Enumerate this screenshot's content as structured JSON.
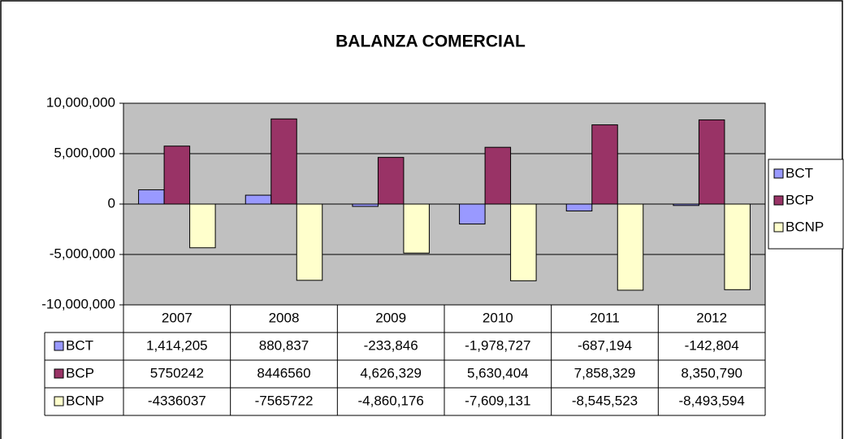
{
  "chart_data": {
    "type": "bar",
    "title": "BALANZA COMERCIAL",
    "categories": [
      "2007",
      "2008",
      "2009",
      "2010",
      "2011",
      "2012"
    ],
    "series": [
      {
        "name": "BCT",
        "color": "#9999ff",
        "values": [
          1414205,
          880837,
          -233846,
          -1978727,
          -687194,
          -142804
        ],
        "value_labels": [
          "1,414,205",
          "880,837",
          "-233,846",
          "-1,978,727",
          "-687,194",
          "-142,804"
        ]
      },
      {
        "name": "BCP",
        "color": "#993366",
        "values": [
          5750242,
          8446560,
          4626329,
          5630404,
          7858329,
          8350790
        ],
        "value_labels": [
          "5750242",
          "8446560",
          "4,626,329",
          "5,630,404",
          "7,858,329",
          "8,350,790"
        ]
      },
      {
        "name": "BCNP",
        "color": "#ffffcc",
        "values": [
          -4336037,
          -7565722,
          -4860176,
          -7609131,
          -8545523,
          -8493594
        ],
        "value_labels": [
          "-4336037",
          "-7565722",
          "-4,860,176",
          "-7,609,131",
          "-8,545,523",
          "-8,493,594"
        ]
      }
    ],
    "ylim": [
      -10000000,
      10000000
    ],
    "yticks": [
      {
        "value": -10000000,
        "label": "-10,000,000"
      },
      {
        "value": -5000000,
        "label": "-5,000,000"
      },
      0,
      {
        "value": 5000000,
        "label": "5,000,000"
      },
      {
        "value": 10000000,
        "label": "10,000,000"
      }
    ],
    "grid": true,
    "legend": "right",
    "plot_background": "#c0c0c0"
  }
}
